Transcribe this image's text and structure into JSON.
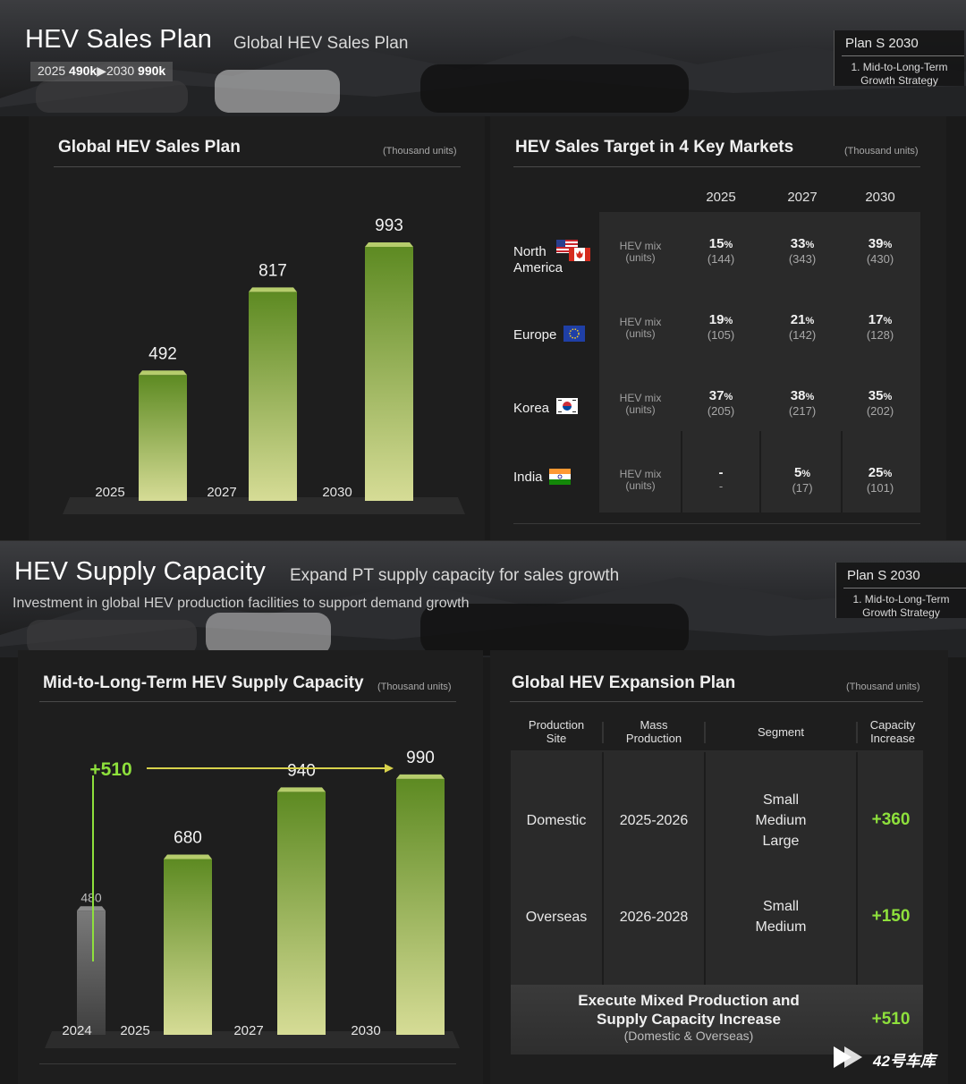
{
  "colors": {
    "accent_green": "#8ee03c",
    "bar_top": "#5d8a22",
    "bar_bottom": "#d6dc96",
    "bar_2024": "#6a6a6a"
  },
  "slide1": {
    "title": "HEV Sales Plan",
    "subtitle": "Global HEV Sales Plan",
    "range": {
      "from_label": "2025",
      "from_value": "490k",
      "arrow": "▶",
      "to_label": "2030",
      "to_value": "990k"
    },
    "plan": {
      "title": "Plan S 2030",
      "item_line1": "1. Mid-to-Long-Term",
      "item_line2": "Growth Strategy"
    },
    "left_panel": {
      "title": "Global HEV Sales Plan",
      "unit": "(Thousand units)"
    },
    "right_panel": {
      "title": "HEV Sales Target in 4 Key Markets",
      "unit": "(Thousand units)"
    },
    "markets": {
      "years": [
        "2025",
        "2027",
        "2030"
      ],
      "mix_label_1": "HEV mix",
      "mix_label_2": "(units)",
      "rows": [
        {
          "name_1": "North",
          "name_2": "America",
          "flag_icon": "us-canada-flag-icon",
          "pct": [
            "15",
            "33",
            "39"
          ],
          "units": [
            "(144)",
            "(343)",
            "(430)"
          ]
        },
        {
          "name_1": "Europe",
          "name_2": "",
          "flag_icon": "eu-flag-icon",
          "pct": [
            "19",
            "21",
            "17"
          ],
          "units": [
            "(105)",
            "(142)",
            "(128)"
          ]
        },
        {
          "name_1": "Korea",
          "name_2": "",
          "flag_icon": "korea-flag-icon",
          "pct": [
            "37",
            "38",
            "35"
          ],
          "units": [
            "(205)",
            "(217)",
            "(202)"
          ]
        },
        {
          "name_1": "India",
          "name_2": "",
          "flag_icon": "india-flag-icon",
          "pct": [
            "-",
            "5",
            "25"
          ],
          "units": [
            "-",
            "(17)",
            "(101)"
          ]
        }
      ],
      "pct_sign": "%"
    }
  },
  "slide2": {
    "title": "HEV Supply Capacity",
    "subtitle": "Expand PT supply capacity for sales growth",
    "description": "Investment in global HEV production facilities to support demand growth",
    "plan": {
      "title": "Plan S 2030",
      "item_line1": "1. Mid-to-Long-Term",
      "item_line2": "Growth Strategy"
    },
    "left_panel": {
      "title": "Mid-to-Long-Term HEV Supply Capacity",
      "unit": "(Thousand units)"
    },
    "right_panel": {
      "title": "Global HEV Expansion Plan",
      "unit": "(Thousand units)"
    },
    "growth_label": "+510",
    "expansion": {
      "headers": [
        {
          "l1": "Production",
          "l2": "Site"
        },
        {
          "l1": "Mass",
          "l2": "Production"
        },
        {
          "l1": "Segment",
          "l2": ""
        },
        {
          "l1": "Capacity",
          "l2": "Increase"
        }
      ],
      "rows": [
        {
          "site": "Domestic",
          "period": "2025-2026",
          "seg_1": "Small",
          "seg_2": "Medium",
          "seg_3": "Large",
          "increase": "+360"
        },
        {
          "site": "Overseas",
          "period": "2026-2028",
          "seg_1": "Small",
          "seg_2": "Medium",
          "seg_3": "",
          "increase": "+150"
        }
      ],
      "summary_1": "Execute Mixed Production and",
      "summary_2": "Supply Capacity Increase",
      "summary_sub": "(Domestic & Overseas)",
      "summary_increase": "+510"
    }
  },
  "watermark": {
    "text": "42号车库"
  },
  "chart_data": [
    {
      "type": "bar",
      "title": "Global HEV Sales Plan",
      "unit": "(Thousand units)",
      "categories": [
        "2025",
        "2027",
        "2030"
      ],
      "values": [
        492,
        817,
        993
      ],
      "ylim": [
        0,
        1000
      ]
    },
    {
      "type": "bar",
      "title": "Mid-to-Long-Term HEV Supply Capacity",
      "unit": "(Thousand units)",
      "categories": [
        "2024",
        "2025",
        "2027",
        "2030"
      ],
      "values": [
        480,
        680,
        940,
        990
      ],
      "ylim": [
        0,
        1000
      ],
      "annotation": "+510"
    }
  ]
}
